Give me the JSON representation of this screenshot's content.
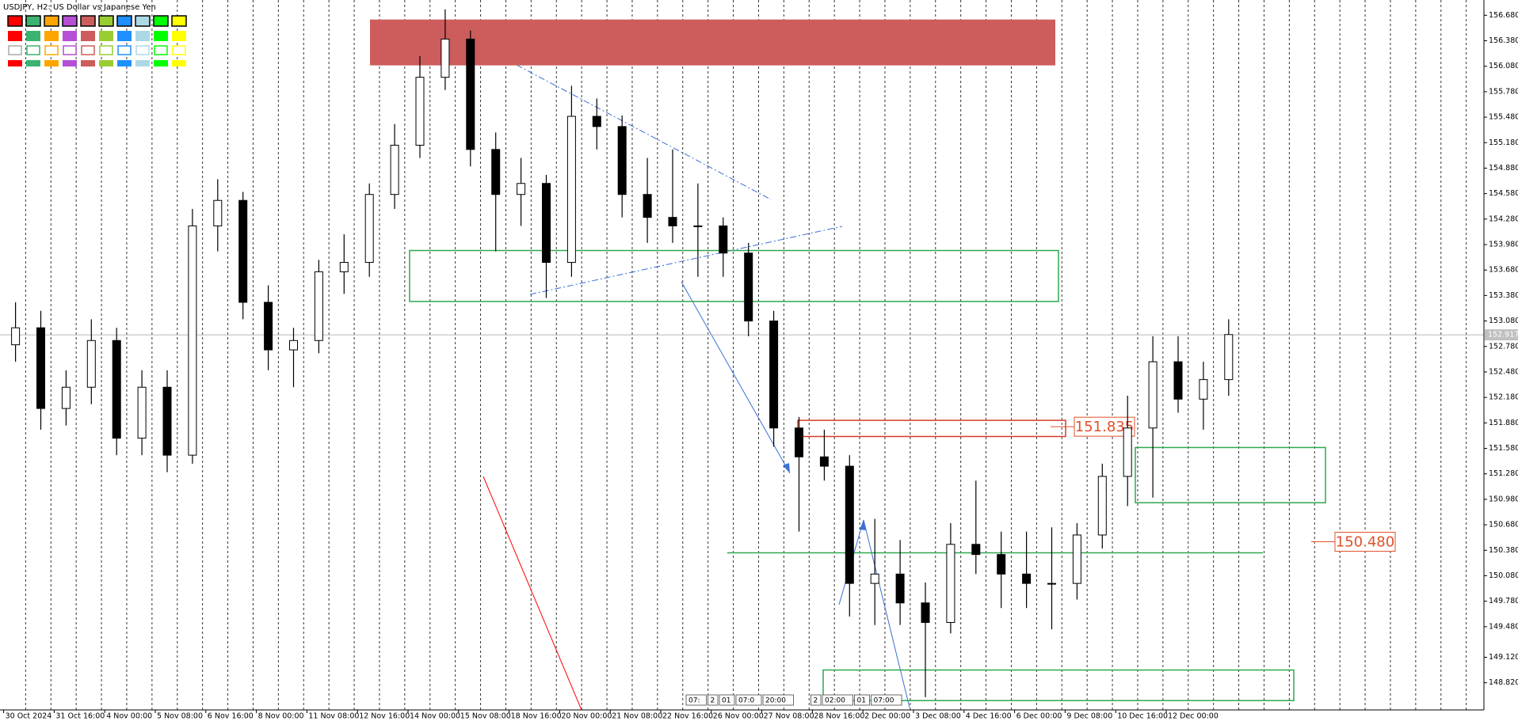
{
  "chart_data": {
    "type": "candlestick",
    "title": "USDJPY, H2:  US Dollar vs Japanese Yen",
    "categories": [
      "30 Oct 2024",
      null,
      "31 Oct 16:00",
      null,
      "4 Nov 00:00",
      null,
      "5 Nov 08:00",
      null,
      "6 Nov 16:00",
      null,
      "8 Nov 00:00",
      null,
      "11 Nov 08:00",
      null,
      "12 Nov 16:00",
      null,
      "14 Nov 00:00",
      null,
      "15 Nov 08:00",
      null,
      "18 Nov 16:00",
      null,
      "20 Nov 00:00",
      null,
      "21 Nov 08:00",
      null,
      "22 Nov 16:00",
      null,
      "26 Nov 00:00",
      null,
      "27 Nov 08:00",
      null,
      "28 Nov 16:00",
      null,
      "2 Dec 00:00",
      null,
      "3 Dec 08:00",
      null,
      "4 Dec 16:00",
      null,
      "6 Dec 00:00",
      null,
      "9 Dec 08:00",
      null,
      "10 Dec 16:00",
      null,
      "12 Dec 00:00",
      null,
      null
    ],
    "open": [
      152.8,
      153.0,
      152.05,
      152.3,
      152.85,
      151.7,
      152.3,
      151.5,
      154.2,
      154.5,
      153.3,
      152.74,
      152.85,
      153.66,
      153.77,
      154.57,
      155.15,
      155.95,
      156.4,
      155.1,
      154.57,
      154.7,
      153.77,
      155.49,
      155.37,
      154.57,
      154.3,
      154.2,
      154.2,
      153.88,
      153.08,
      151.82,
      151.48,
      151.37,
      149.99,
      150.1,
      149.76,
      149.53,
      150.45,
      150.33,
      150.1,
      149.99,
      149.99,
      150.56,
      151.25,
      151.82,
      152.6,
      152.16,
      152.39
    ],
    "high": [
      153.3,
      153.2,
      152.5,
      153.1,
      153.0,
      152.5,
      152.5,
      154.4,
      154.75,
      154.6,
      153.5,
      153.0,
      153.8,
      154.1,
      154.7,
      155.4,
      156.2,
      156.75,
      156.5,
      155.3,
      155.0,
      154.8,
      155.85,
      155.7,
      155.5,
      155.0,
      155.1,
      154.7,
      154.3,
      154.0,
      153.2,
      151.95,
      151.8,
      151.5,
      150.75,
      150.5,
      150.0,
      150.7,
      151.2,
      150.6,
      150.6,
      150.65,
      150.7,
      151.4,
      152.2,
      152.9,
      152.9,
      152.6,
      153.1
    ],
    "low": [
      152.6,
      151.8,
      151.85,
      152.1,
      151.5,
      151.5,
      151.3,
      151.4,
      153.9,
      153.1,
      152.5,
      152.3,
      152.7,
      153.4,
      153.6,
      154.4,
      155.0,
      155.8,
      154.9,
      153.9,
      154.2,
      153.35,
      153.6,
      155.1,
      154.3,
      154.0,
      154.0,
      153.6,
      153.6,
      152.9,
      151.6,
      150.6,
      151.2,
      149.6,
      149.5,
      149.5,
      148.65,
      149.4,
      150.1,
      149.7,
      149.7,
      149.45,
      149.8,
      150.4,
      150.9,
      151.0,
      152.0,
      151.8,
      152.2
    ],
    "close": [
      153.0,
      152.05,
      152.3,
      152.85,
      151.7,
      152.3,
      151.5,
      154.2,
      154.5,
      153.3,
      152.74,
      152.85,
      153.66,
      153.77,
      154.57,
      155.15,
      155.95,
      156.4,
      155.1,
      154.57,
      154.7,
      153.77,
      155.49,
      155.37,
      154.57,
      154.3,
      154.2,
      154.2,
      153.88,
      153.08,
      151.82,
      151.48,
      151.37,
      149.99,
      150.1,
      149.76,
      149.53,
      150.45,
      150.33,
      150.1,
      149.99,
      149.99,
      150.56,
      151.25,
      151.82,
      152.6,
      152.16,
      152.39,
      152.92
    ],
    "up_color": "#ffffff",
    "down_color": "#000000",
    "ylim": [
      148.5,
      156.86
    ],
    "yticks": [
      {
        "value": 148.82,
        "label": "148.820"
      },
      {
        "value": 149.12,
        "label": "149.120"
      },
      {
        "value": 149.48,
        "label": "149.480"
      },
      {
        "value": 149.78,
        "label": "149.780"
      },
      {
        "value": 150.08,
        "label": "150.080"
      },
      {
        "value": 150.38,
        "label": "150.380"
      },
      {
        "value": 150.68,
        "label": "150.680"
      },
      {
        "value": 150.98,
        "label": "150.980"
      },
      {
        "value": 151.28,
        "label": "151.280"
      },
      {
        "value": 151.58,
        "label": "151.580"
      },
      {
        "value": 151.88,
        "label": "151.880"
      },
      {
        "value": 152.18,
        "label": "152.180"
      },
      {
        "value": 152.48,
        "label": "152.480"
      },
      {
        "value": 152.78,
        "label": "152.780"
      },
      {
        "value": 153.08,
        "label": "153.080"
      },
      {
        "value": 153.38,
        "label": "153.380"
      },
      {
        "value": 153.68,
        "label": "153.680"
      },
      {
        "value": 153.98,
        "label": "153.980"
      },
      {
        "value": 154.28,
        "label": "154.280"
      },
      {
        "value": 154.58,
        "label": "154.580"
      },
      {
        "value": 154.88,
        "label": "154.880"
      },
      {
        "value": 155.18,
        "label": "155.180"
      },
      {
        "value": 155.48,
        "label": "155.480"
      },
      {
        "value": 155.78,
        "label": "155.780"
      },
      {
        "value": 156.08,
        "label": "156.080"
      },
      {
        "value": 156.38,
        "label": "156.380"
      },
      {
        "value": 156.68,
        "label": "156.680"
      }
    ],
    "grid": false,
    "last_price": 152.917,
    "zones": [
      {
        "from": 156.09,
        "to": 156.63,
        "color": "#cd5c5c",
        "filled": true
      },
      {
        "from": 153.31,
        "to": 153.91,
        "color": "#2ea84f",
        "filled": false
      },
      {
        "from": 151.72,
        "to": 151.91,
        "color": "#d83a2a",
        "filled": false
      },
      {
        "from": 150.94,
        "to": 151.59,
        "color": "#2ea84f",
        "filled": false
      },
      {
        "from": 148.61,
        "to": 148.97,
        "color": "#2ea84f",
        "filled": false
      }
    ],
    "levels": [
      {
        "value": 150.35,
        "color": "#2ea84f"
      }
    ],
    "annotations": [
      {
        "value": 151.835,
        "label": "151.835",
        "color": "#e0502a"
      },
      {
        "value": 150.48,
        "label": "150.480",
        "color": "#e0502a"
      }
    ],
    "time_markers": [
      "07:",
      "2",
      "01",
      "07:0",
      "20:00",
      "2",
      "02:00",
      "01",
      "07:00"
    ]
  }
}
